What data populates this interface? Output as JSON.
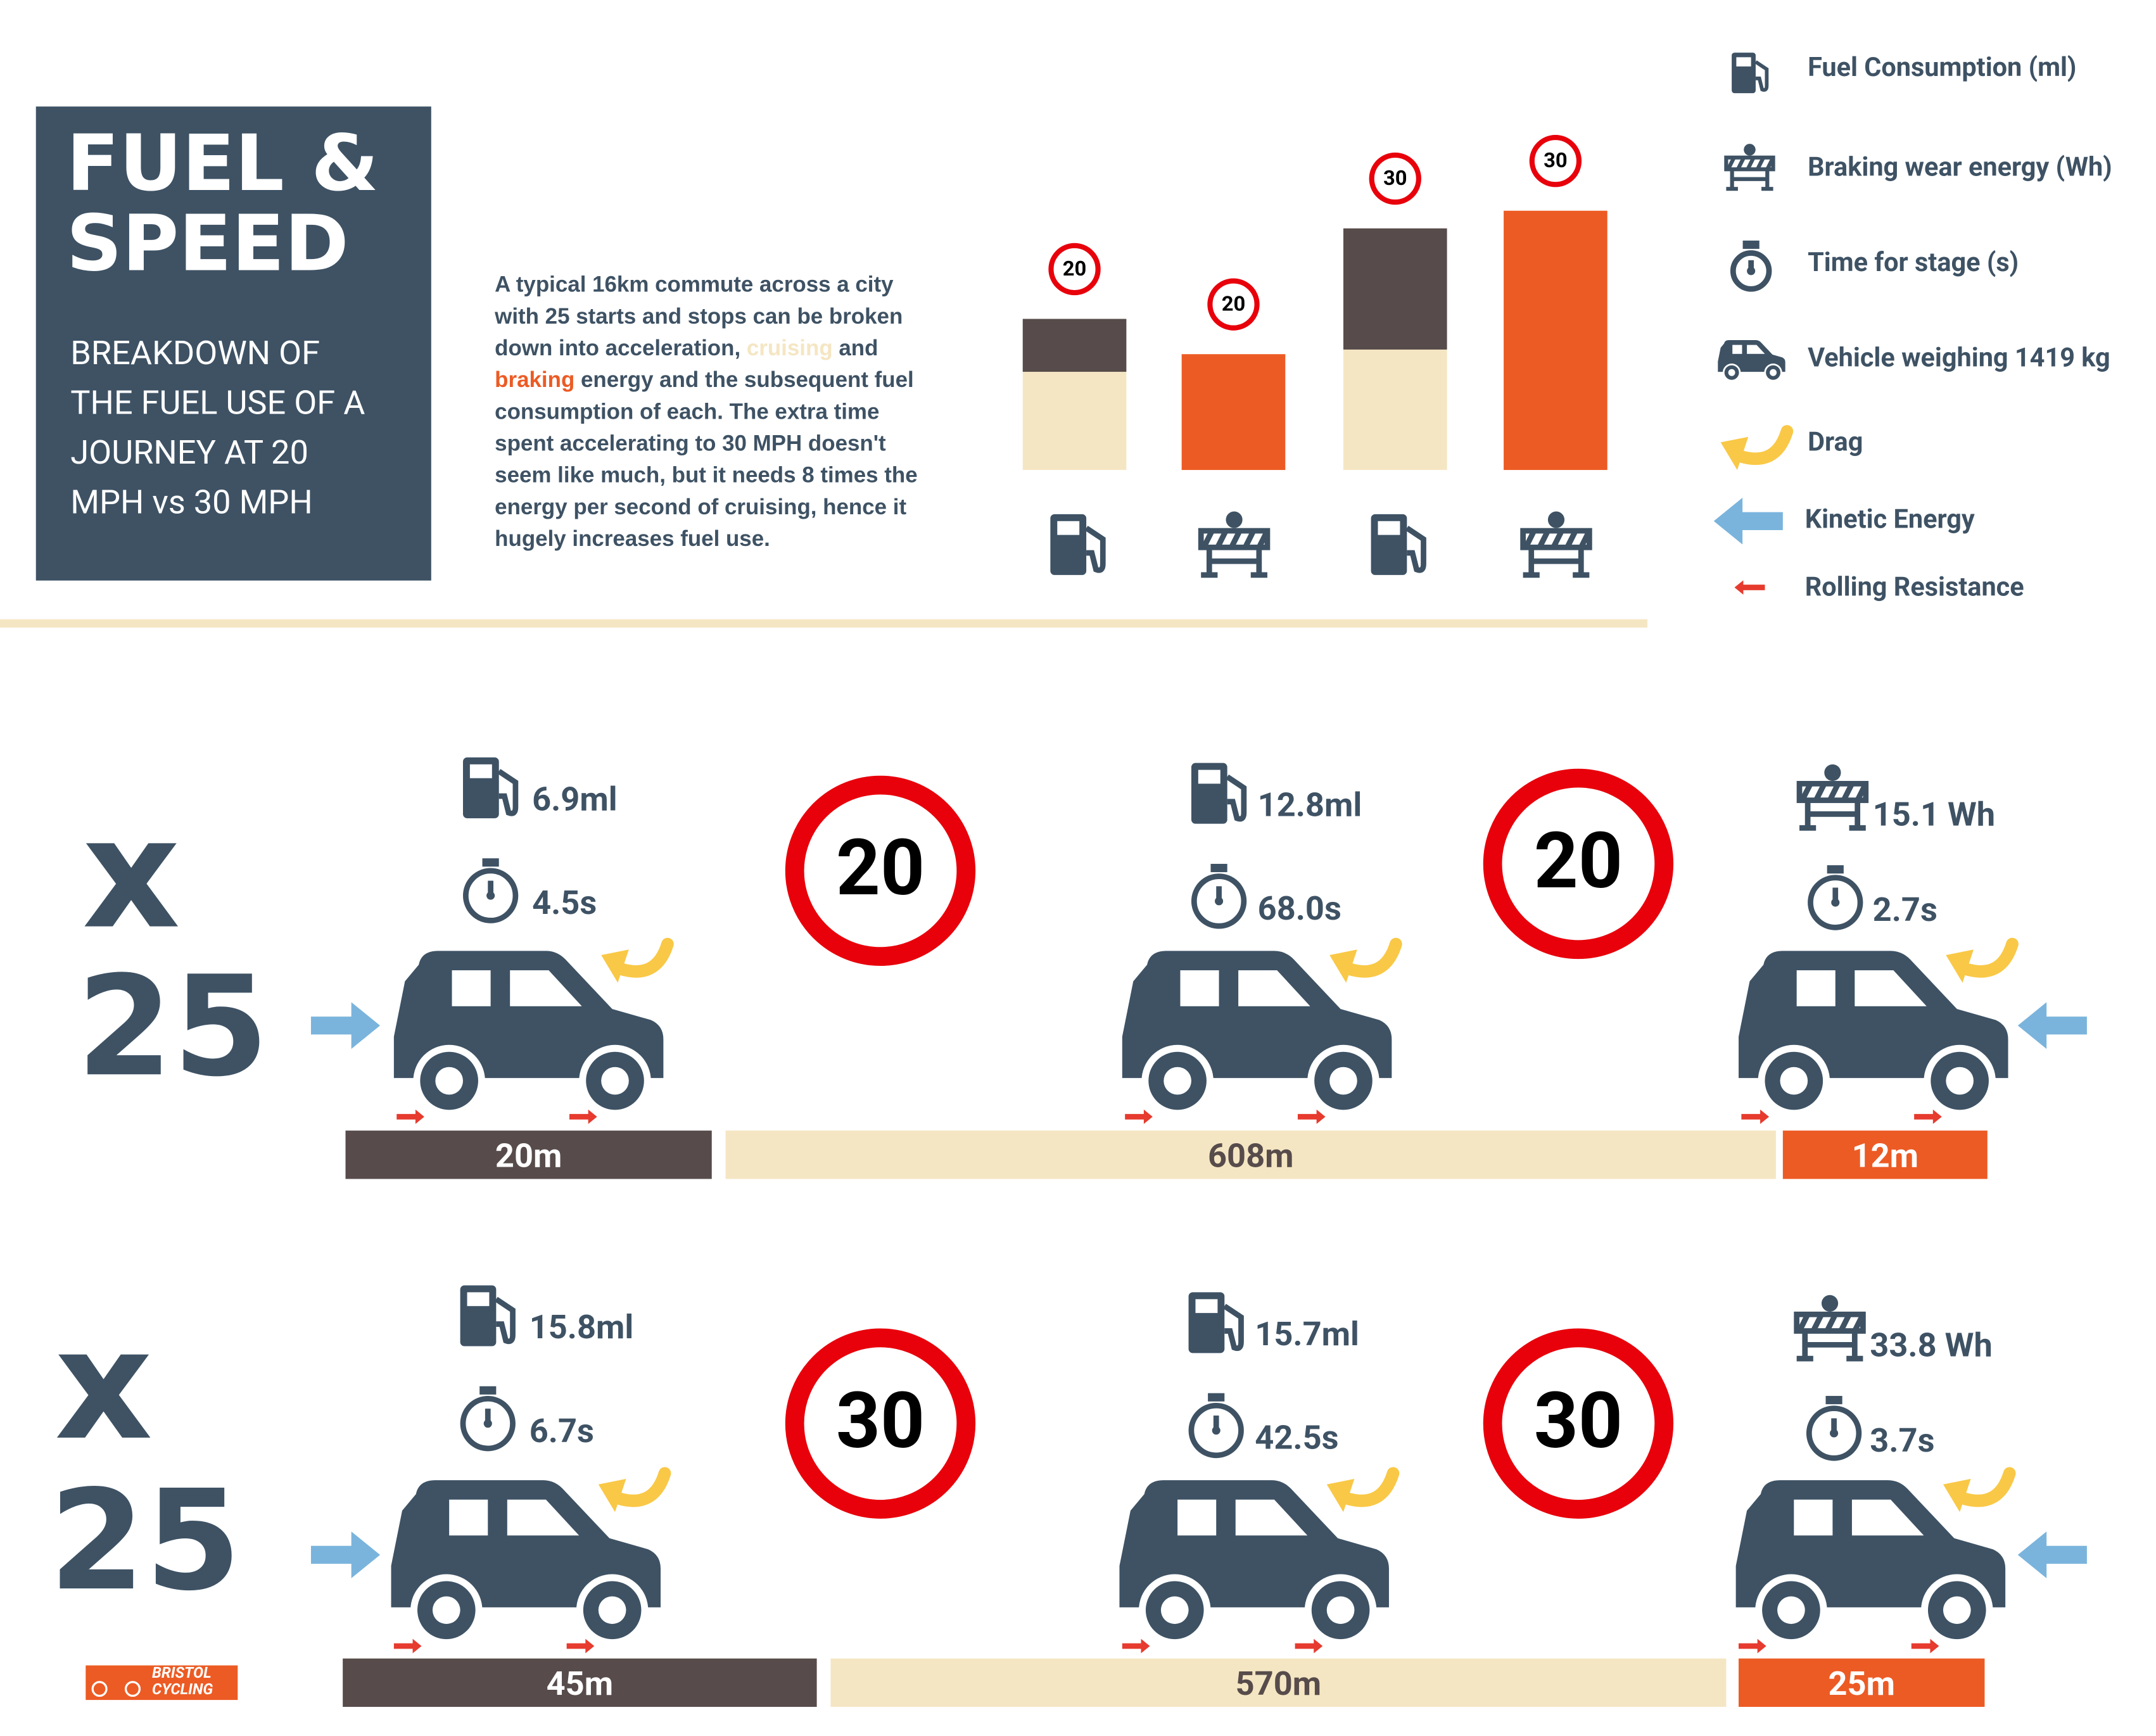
{
  "header": {
    "title_lines": [
      "FUEL &",
      "SPEED"
    ],
    "subtitle_lines": [
      "BREAKDOWN OF",
      "THE FUEL USE OF A",
      "JOURNEY AT 20",
      "MPH vs 30 MPH"
    ]
  },
  "intro": [
    "A typical 16km commute across a city with 25 starts and stops can be broken down into acceleration, ",
    "cruising",
    " and ",
    "braking",
    " energy and the subsequent fuel consumption of each. The extra time spent accelerating to 30 MPH doesn't seem like much, but it needs 8 times the energy per second of cruising, hence it hugely increases fuel use."
  ],
  "chart_signs": [
    "20",
    "20",
    "30",
    "30"
  ],
  "legend": [
    "Fuel Consumption (ml)",
    "Braking wear energy (Wh)",
    "Time for stage (s)",
    "Vehicle weighing 1419 kg",
    "Drag",
    "Kinetic Energy",
    "Rolling Resistance"
  ],
  "rows": [
    {
      "multiplier": "x",
      "count": "25",
      "signs": [
        "20",
        "20"
      ],
      "stages": [
        {
          "value": 6.9,
          "value_label": "6.9ml",
          "time": "4.5s",
          "distance": "20m"
        },
        {
          "value": 12.8,
          "value_label": "12.8ml",
          "time": "68.0s",
          "distance": "608m"
        },
        {
          "value": 15.1,
          "value_label": "15.1 Wh",
          "time": "2.7s",
          "distance": "12m"
        }
      ]
    },
    {
      "multiplier": "x",
      "count": "25",
      "signs": [
        "30",
        "30"
      ],
      "stages": [
        {
          "value": 15.8,
          "value_label": "15.8ml",
          "time": "6.7s",
          "distance": "45m"
        },
        {
          "value": 15.7,
          "value_label": "15.7ml",
          "time": "42.5s",
          "distance": "570m"
        },
        {
          "value": 33.8,
          "value_label": "33.8 Wh",
          "time": "3.7s",
          "distance": "25m"
        }
      ]
    }
  ],
  "logo": [
    "BRISTOL",
    "CYCLING"
  ]
}
